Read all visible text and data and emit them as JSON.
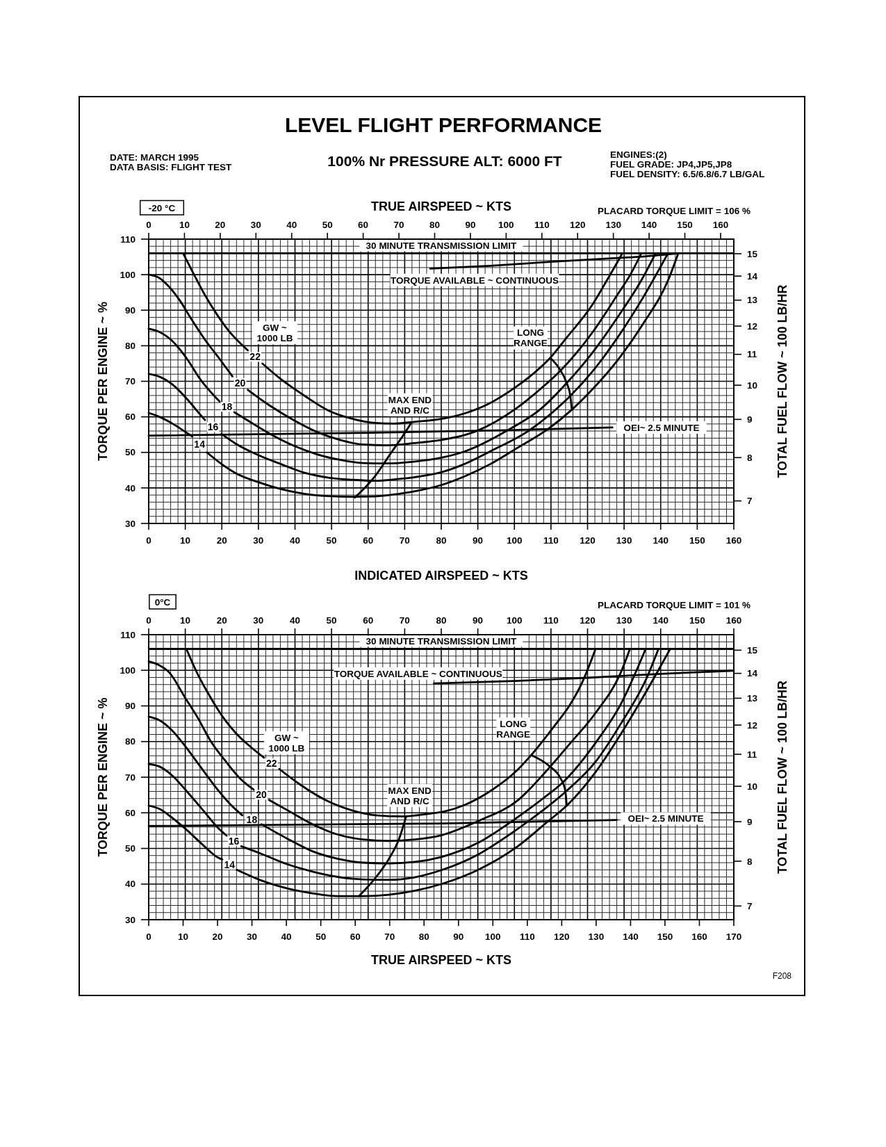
{
  "chart_data": [
    {
      "type": "line",
      "title": "LEVEL FLIGHT PERFORMANCE",
      "subtitle": "100% Nr PRESSURE ALT: 6000 FT",
      "xlabel": "INDICATED AIRSPEED ~ KTS",
      "x2label": "TRUE AIRSPEED ~ KTS",
      "ylabel": "TORQUE PER ENGINE ~ %",
      "y2label": "TOTAL FUEL FLOW ~ 100 LB/HR",
      "xlim": [
        0,
        160
      ],
      "xticks": [
        0,
        10,
        20,
        30,
        40,
        50,
        60,
        70,
        80,
        90,
        100,
        110,
        120,
        130,
        140,
        150,
        160
      ],
      "ylim": [
        30,
        110
      ],
      "yticks": [
        30,
        40,
        50,
        60,
        70,
        80,
        90,
        100,
        110
      ],
      "x2lim": [
        0,
        163.7
      ],
      "x2ticks": [
        0,
        10,
        20,
        30,
        40,
        50,
        60,
        70,
        80,
        90,
        100,
        110,
        120,
        130,
        140,
        150,
        160
      ],
      "y2lim": [
        6.53,
        15.69
      ],
      "y2ticks": [
        7,
        8,
        9,
        10,
        11,
        12,
        13,
        14,
        15
      ],
      "log": "y2",
      "grid": true,
      "ref_lines": [
        {
          "axis": "y",
          "value": 106,
          "label": "30 MINUTE TRANSMISSION LIMIT"
        }
      ],
      "annotations": [
        "DATE: MARCH 1995",
        "DATA BASIS: FLIGHT TEST",
        "ENGINES:(2)",
        "FUEL GRADE: JP4,JP5,JP8",
        "FUEL DENSITY: 6.5/6.8/6.7 LB/GAL",
        "-20 °C",
        "PLACARD TORQUE LIMIT = 106 %",
        "GW ~ 1000 LB",
        "MAX END AND R/C",
        "TORQUE AVAILABLE ~ CONTINUOUS",
        "LONG RANGE",
        "OEI~ 2.5 MINUTE"
      ],
      "series": [
        {
          "name": "22",
          "color": "#000000",
          "x": [
            9.4,
            12.3,
            15.4,
            18.6,
            21.8,
            27.1,
            29.1,
            31.1,
            36.4,
            42.8,
            49.1,
            55.5,
            61.9,
            67,
            72.6,
            80,
            86.5,
            93.4,
            100.4,
            105,
            109.8,
            114.3,
            121.3,
            125.4,
            128.2,
            129.5
          ],
          "values": [
            106,
            100.2,
            94.2,
            88.9,
            84.3,
            78.7,
            null,
            75.0,
            70.4,
            65.8,
            61.8,
            59.5,
            58.3,
            58.1,
            58.6,
            59.4,
            61.0,
            63.9,
            68.4,
            72.0,
            76.6,
            82.3,
            91.5,
            98.6,
            103.6,
            106
          ]
        },
        {
          "name": "20",
          "color": "#000000",
          "x": [
            0,
            2.7,
            5.3,
            8.4,
            11.6,
            15.4,
            19.3,
            22.9,
            25,
            27.1,
            33.2,
            39.6,
            45.9,
            52.3,
            58.6,
            65,
            72.6,
            80,
            86.5,
            89.6,
            100.4,
            107.3,
            112.6,
            121.3,
            128.2,
            131.7,
            134.7
          ],
          "values": [
            100,
            99.2,
            96.9,
            92.9,
            87.6,
            81.7,
            76.4,
            71.4,
            null,
            67.6,
            63.1,
            59.1,
            55.8,
            53.5,
            52.2,
            52.0,
            52.6,
            53.5,
            54.9,
            56.0,
            62.3,
            68.0,
            73.0,
            83.7,
            94.4,
            100,
            106
          ]
        },
        {
          "name": "18",
          "color": "#000000",
          "x": [
            0,
            2.7,
            6.5,
            10.4,
            14.2,
            18,
            19.4,
            21.4,
            23.4,
            26.9,
            33.2,
            39.6,
            45.9,
            52.3,
            58.6,
            65,
            72.6,
            80,
            86.5,
            98.3,
            107.3,
            114.3,
            121.3,
            128.2,
            135.2,
            138.6
          ],
          "values": [
            84.8,
            84.0,
            81.3,
            76.4,
            70.4,
            65.8,
            64.3,
            null,
            61.3,
            59.1,
            55.2,
            51.9,
            49.5,
            47.9,
            47.0,
            46.9,
            47.4,
            48.5,
            50.3,
            56.3,
            62.3,
            69.5,
            78.0,
            88.0,
            99.3,
            106
          ]
        },
        {
          "name": "16",
          "color": "#000000",
          "x": [
            0,
            2.7,
            6.5,
            10.4,
            14.2,
            15.4,
            17.6,
            19.9,
            23.7,
            30,
            36.4,
            42.8,
            49.1,
            55.5,
            61.8,
            68.2,
            72.6,
            80,
            86.5,
            93.4,
            104.2,
            110.8,
            115.3,
            121.3,
            128.2,
            135.2,
            142
          ],
          "values": [
            72.1,
            71.4,
            69.1,
            65.1,
            60.5,
            59.1,
            null,
            55.2,
            52.5,
            49.2,
            46.6,
            44.2,
            42.9,
            42.3,
            42.0,
            42.5,
            43.0,
            44.4,
            46.8,
            50.3,
            56.3,
            61.6,
            65.9,
            72.7,
            82.3,
            93.6,
            106
          ]
        },
        {
          "name": "14",
          "color": "#000000",
          "x": [
            0,
            2.7,
            6.5,
            10.4,
            11.9,
            13.9,
            15.9,
            19.3,
            23.7,
            30,
            36.4,
            42.8,
            49.1,
            55.5,
            61.8,
            68.2,
            74.5,
            80,
            86.5,
            93.4,
            100.4,
            109.4,
            115.7,
            121.3,
            128.2,
            135.2,
            142.1,
            144.8
          ],
          "values": [
            61.1,
            60.1,
            58.1,
            55.5,
            54.5,
            null,
            50.0,
            47.2,
            44.2,
            41.6,
            39.6,
            38.3,
            37.7,
            37.5,
            37.6,
            38.3,
            39.4,
            40.8,
            43.3,
            46.7,
            51.0,
            56.7,
            62.0,
            67.7,
            75.9,
            86.2,
            98.6,
            106
          ]
        },
        {
          "color": "#000000",
          "x": [
            77,
            93.4,
            109.8,
            128.2,
            135.2,
            145
          ],
          "values": [
            101.7,
            102.5,
            103.6,
            104.7,
            105.1,
            106
          ]
        },
        {
          "color": "#000000",
          "x": [
            0,
            60,
            100,
            126.8
          ],
          "values": [
            54.7,
            55.5,
            56.3,
            57.0
          ]
        },
        {
          "color": "#000000",
          "x": [
            56.4,
            61.8,
            66.3,
            69.4,
            71.7
          ],
          "values": [
            37.3,
            43.2,
            49.9,
            54.5,
            58.1
          ]
        },
        {
          "color": "#000000",
          "x": [
            109.8,
            112.2,
            114.3,
            115.3,
            115.7
          ],
          "values": [
            76.6,
            73.7,
            69.5,
            65.9,
            62.0
          ]
        }
      ]
    },
    {
      "type": "line",
      "x2label": "TRUE AIRSPEED ~ KTS",
      "ylabel": "TORQUE PER ENGINE ~ %",
      "y2label": "TOTAL FUEL FLOW ~ 100 LB/HR",
      "xlim": [
        0,
        160
      ],
      "xticks": [
        0,
        10,
        20,
        30,
        40,
        50,
        60,
        70,
        80,
        90,
        100,
        110,
        120,
        130,
        140,
        150,
        160
      ],
      "ylim": [
        30,
        110
      ],
      "yticks": [
        30,
        40,
        50,
        60,
        70,
        80,
        90,
        100,
        110
      ],
      "x2lim": [
        0,
        170
      ],
      "x2ticks": [
        0,
        10,
        20,
        30,
        40,
        50,
        60,
        70,
        80,
        90,
        100,
        110,
        120,
        130,
        140,
        150,
        160,
        170
      ],
      "y2lim": [
        6.72,
        15.71
      ],
      "y2ticks": [
        7,
        8,
        9,
        10,
        11,
        12,
        13,
        14,
        15
      ],
      "log": "y2",
      "grid": true,
      "ref_lines": [
        {
          "axis": "y",
          "value": 106,
          "label": "30 MINUTE TRANSMISSION LIMIT"
        }
      ],
      "annotations": [
        "0°C",
        "PLACARD TORQUE LIMIT = 101 %",
        "F208",
        "GW ~ 1000 LB",
        "MAX END AND R/C",
        "TORQUE AVAILABLE ~ CONTINUOUS",
        "LONG RANGE",
        "OEI~ 2.5 MINUTE"
      ],
      "series": [
        {
          "name": "22",
          "color": "#000000",
          "x": [
            10.3,
            13.4,
            16.9,
            20.4,
            23.8,
            28,
            31.5,
            33.6,
            35.7,
            41.3,
            48.3,
            55.2,
            62.2,
            69.2,
            76.2,
            81,
            86.6,
            93.7,
            100.8,
            104.6,
            111.4,
            115,
            118.5,
            122.2
          ],
          "values": [
            106,
            98.9,
            92.4,
            86.7,
            82.4,
            78.4,
            75.5,
            null,
            72.3,
            68.0,
            63.6,
            60.8,
            59.3,
            59.0,
            59.7,
            60.4,
            62.3,
            66.3,
            72.0,
            76.2,
            85.0,
            90.0,
            96.5,
            106
          ]
        },
        {
          "name": "20",
          "color": "#000000",
          "x": [
            0,
            2.9,
            5.7,
            9.9,
            13.4,
            16.9,
            21.1,
            25.2,
            28.7,
            30.8,
            32.9,
            37.8,
            44.8,
            51.7,
            58.7,
            65.7,
            72.7,
            80,
            90.1,
            100.8,
            109.5,
            115,
            122.1,
            129.1,
            131.6
          ],
          "values": [
            102.5,
            101.4,
            99.3,
            92.4,
            86.7,
            80.2,
            74.4,
            69.4,
            66.5,
            null,
            63.6,
            60.8,
            56.8,
            53.9,
            52.5,
            52.1,
            52.5,
            53.7,
            57.7,
            63.4,
            72.6,
            79.2,
            87.9,
            99.4,
            106
          ]
        },
        {
          "name": "18",
          "color": "#000000",
          "x": [
            0,
            2.9,
            6.4,
            9.9,
            14.1,
            18.3,
            22.5,
            25.6,
            28.2,
            30.8,
            37.8,
            44.8,
            51.7,
            58.7,
            65.7,
            72.7,
            80,
            90.1,
            99.4,
            107.9,
            113.2,
            122.1,
            129.1,
            135.9
          ],
          "values": [
            87.0,
            86.0,
            83.1,
            78.8,
            73.0,
            67.2,
            62.2,
            59.3,
            null,
            56.8,
            52.8,
            49.2,
            47.1,
            46.0,
            45.8,
            46.2,
            47.6,
            51.6,
            57.7,
            64.1,
            68.5,
            79.5,
            90.5,
            106
          ]
        },
        {
          "name": "16",
          "color": "#000000",
          "x": [
            0,
            2.9,
            6.4,
            10.6,
            14.8,
            19,
            21.3,
            23.3,
            25.3,
            30.8,
            37.8,
            44.8,
            51.7,
            58.7,
            65.7,
            72.7,
            80,
            90.1,
            99.4,
            104.3,
            114.1,
            122.1,
            129.1,
            136.2,
            139.4
          ],
          "values": [
            73.7,
            73.0,
            70.5,
            65.8,
            60.8,
            55.7,
            53.6,
            null,
            50.6,
            48.5,
            45.6,
            43.5,
            42.0,
            41.3,
            41.2,
            41.9,
            43.9,
            48.3,
            54.4,
            58.0,
            66.0,
            74.2,
            85.0,
            97.9,
            106
          ]
        },
        {
          "name": "14",
          "color": "#000000",
          "x": [
            0,
            2.9,
            6.4,
            10.6,
            14.8,
            19,
            20.1,
            22.1,
            24.1,
            30.8,
            37.8,
            44.8,
            51.7,
            58.7,
            65.7,
            72.7,
            80,
            90.1,
            100.8,
            109.3,
            114.3,
            122.1,
            129.1,
            136.2,
            142.6
          ],
          "values": [
            62.0,
            61.1,
            58.6,
            55.0,
            51.0,
            47.4,
            46.9,
            null,
            44.0,
            41.0,
            38.8,
            37.4,
            36.6,
            36.6,
            37.0,
            38.1,
            40.0,
            44.0,
            50.5,
            57.7,
            62.0,
            71.3,
            82.1,
            94.3,
            106
          ]
        },
        {
          "color": "#000000",
          "x": [
            78,
            100,
            120,
            140,
            160
          ],
          "values": [
            96.3,
            97.0,
            97.9,
            99.0,
            99.9
          ]
        },
        {
          "color": "#000000",
          "x": [
            0,
            80,
            128
          ],
          "values": [
            56.3,
            57.0,
            58.0
          ]
        },
        {
          "color": "#000000",
          "x": [
            57.5,
            62.2,
            65.7,
            68.5,
            70.4
          ],
          "values": [
            36.6,
            42.0,
            47.1,
            52.8,
            59.0
          ]
        },
        {
          "color": "#000000",
          "x": [
            104.6,
            109.6,
            112.5,
            113.9,
            114.3
          ],
          "values": [
            76.2,
            73.1,
            69.9,
            66.3,
            62.0
          ]
        }
      ]
    }
  ]
}
